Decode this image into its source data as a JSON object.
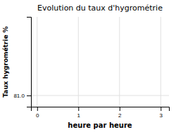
{
  "chart_data": {
    "type": "line",
    "title": "Evolution du taux d'hygrométrie",
    "xlabel": "heure par heure",
    "ylabel": "Taux hygrométrie %",
    "xlim": [
      -0.15,
      3.2
    ],
    "ylim": [
      80.5,
      84.5
    ],
    "xticks": [
      0,
      1,
      2,
      3
    ],
    "yticks": [
      {
        "value": 81.0,
        "label": "81.0"
      }
    ],
    "grid": true
  }
}
